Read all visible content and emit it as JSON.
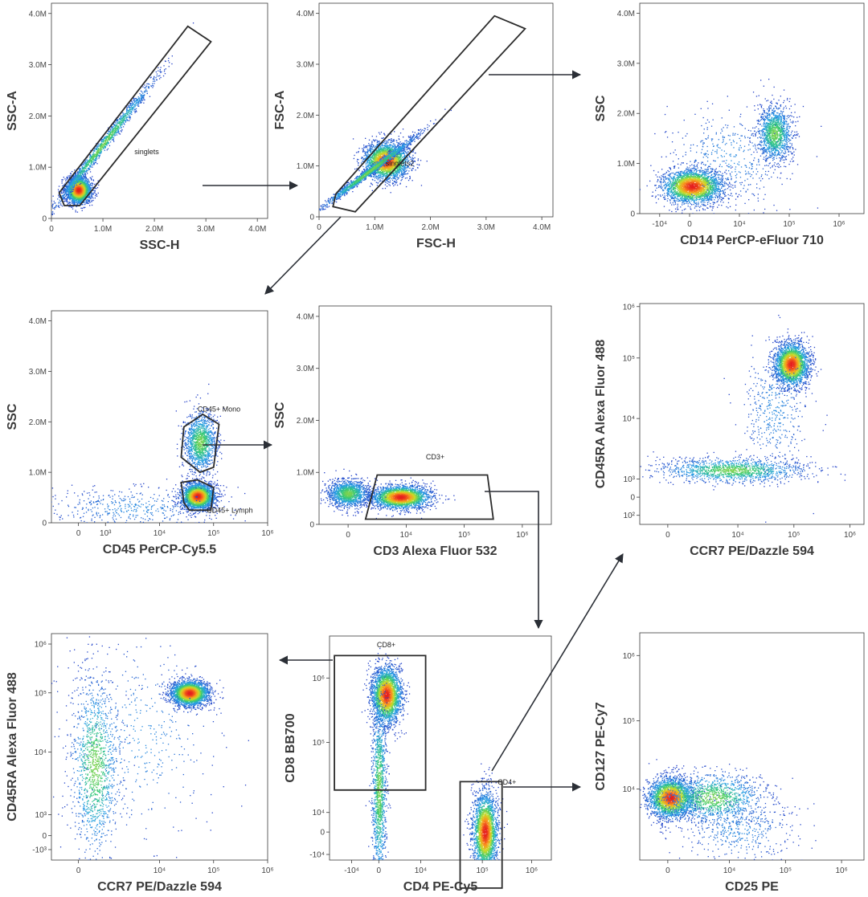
{
  "chart_data": [
    {
      "type": "scatter",
      "id": "p1",
      "xlabel": "SSC-H",
      "ylabel": "SSC-A",
      "xscale": "linear",
      "yscale": "linear",
      "xlim": [
        0,
        4200000
      ],
      "ylim": [
        0,
        4200000
      ],
      "xticks": [
        {
          "v": 0,
          "t": "0"
        },
        {
          "v": 1000000,
          "t": "1.0M"
        },
        {
          "v": 2000000,
          "t": "2.0M"
        },
        {
          "v": 3000000,
          "t": "3.0M"
        },
        {
          "v": 4000000,
          "t": "4.0M"
        }
      ],
      "yticks": [
        {
          "v": 0,
          "t": "0"
        },
        {
          "v": 1000000,
          "t": "1.0M"
        },
        {
          "v": 2000000,
          "t": "2.0M"
        },
        {
          "v": 3000000,
          "t": "3.0M"
        },
        {
          "v": 4000000,
          "t": "4.0M"
        }
      ],
      "gates": [
        {
          "name": "singlets",
          "label_at": [
            1850000,
            1250000
          ],
          "vertices": [
            [
              250000,
              250000
            ],
            [
              150000,
              500000
            ],
            [
              2650000,
              3750000
            ],
            [
              3100000,
              3450000
            ],
            [
              550000,
              250000
            ]
          ]
        }
      ],
      "populations": [
        {
          "center": [
            520000,
            560000
          ],
          "spread": [
            120000,
            130000
          ],
          "weight": "high"
        },
        {
          "center": [
            1000000,
            1450000
          ],
          "spread": [
            500000,
            650000
          ],
          "weight": "medium",
          "diagonal": true
        }
      ]
    },
    {
      "type": "scatter",
      "id": "p2",
      "xlabel": "FSC-H",
      "ylabel": "FSC-A",
      "xscale": "linear",
      "yscale": "linear",
      "xlim": [
        0,
        4200000
      ],
      "ylim": [
        0,
        4200000
      ],
      "xticks": [
        {
          "v": 0,
          "t": "0"
        },
        {
          "v": 1000000,
          "t": "1.0M"
        },
        {
          "v": 2000000,
          "t": "2.0M"
        },
        {
          "v": 3000000,
          "t": "3.0M"
        },
        {
          "v": 4000000,
          "t": "4.0M"
        }
      ],
      "yticks": [
        {
          "v": 0,
          "t": "0"
        },
        {
          "v": 1000000,
          "t": "1.0M"
        },
        {
          "v": 2000000,
          "t": "2.0M"
        },
        {
          "v": 3000000,
          "t": "3.0M"
        },
        {
          "v": 4000000,
          "t": "4.0M"
        }
      ],
      "gates": [
        {
          "name": "singlets2",
          "label_at": [
            1450000,
            1000000
          ],
          "vertices": [
            [
              250000,
              200000
            ],
            [
              300000,
              450000
            ],
            [
              3150000,
              3950000
            ],
            [
              3700000,
              3700000
            ],
            [
              650000,
              100000
            ]
          ]
        }
      ],
      "populations": [
        {
          "center": [
            1200000,
            1100000
          ],
          "spread": [
            200000,
            180000
          ],
          "weight": "high"
        },
        {
          "center": [
            900000,
            900000
          ],
          "spread": [
            450000,
            380000
          ],
          "weight": "medium",
          "diagonal": true
        }
      ]
    },
    {
      "type": "scatter",
      "id": "p3",
      "xlabel": "CD14 PerCP-eFluor 710",
      "ylabel": "SSC",
      "xscale": "biex",
      "yscale": "linear",
      "xlim": [
        -2,
        7
      ],
      "ylim": [
        0,
        4200000
      ],
      "xticks": [
        {
          "v": -1.2,
          "t": "-10⁴"
        },
        {
          "v": 0,
          "t": "0"
        },
        {
          "v": 2,
          "t": "10⁴"
        },
        {
          "v": 4,
          "t": "10⁵"
        },
        {
          "v": 6,
          "t": "10⁶"
        }
      ],
      "yticks": [
        {
          "v": 0,
          "t": "0"
        },
        {
          "v": 1000000,
          "t": "1.0M"
        },
        {
          "v": 2000000,
          "t": "2.0M"
        },
        {
          "v": 3000000,
          "t": "3.0M"
        },
        {
          "v": 4000000,
          "t": "4.0M"
        }
      ],
      "gates": [],
      "populations": [
        {
          "center": [
            0.1,
            550000
          ],
          "spread": [
            0.6,
            170000
          ],
          "weight": "high"
        },
        {
          "center": [
            3.4,
            1600000
          ],
          "spread": [
            0.35,
            280000
          ],
          "weight": "medium"
        },
        {
          "center": [
            1.5,
            1100000
          ],
          "spread": [
            1.2,
            500000
          ],
          "weight": "low"
        }
      ]
    },
    {
      "type": "scatter",
      "id": "p4",
      "xlabel": "CD45 PerCP-Cy5.5",
      "ylabel": "SSC",
      "xscale": "biex",
      "yscale": "linear",
      "xlim": [
        -1,
        7
      ],
      "ylim": [
        0,
        4200000
      ],
      "xticks": [
        {
          "v": 0,
          "t": "0"
        },
        {
          "v": 1,
          "t": "10³"
        },
        {
          "v": 3,
          "t": "10⁴"
        },
        {
          "v": 5,
          "t": "10⁵"
        },
        {
          "v": 7,
          "t": "10⁶"
        }
      ],
      "yticks": [
        {
          "v": 0,
          "t": "0"
        },
        {
          "v": 1000000,
          "t": "1.0M"
        },
        {
          "v": 2000000,
          "t": "2.0M"
        },
        {
          "v": 3000000,
          "t": "3.0M"
        },
        {
          "v": 4000000,
          "t": "4.0M"
        }
      ],
      "gates": [
        {
          "name": "CD45+ Mono",
          "label_at": [
            5.2,
            2200000
          ],
          "vertices": [
            [
              3.8,
              1300000
            ],
            [
              3.9,
              1900000
            ],
            [
              4.6,
              2150000
            ],
            [
              5.2,
              1950000
            ],
            [
              5.0,
              1100000
            ],
            [
              4.5,
              1000000
            ]
          ]
        },
        {
          "name": "CD45+ Lymph",
          "label_at": [
            5.6,
            200000
          ],
          "vertices": [
            [
              3.9,
              400000
            ],
            [
              3.8,
              800000
            ],
            [
              4.4,
              850000
            ],
            [
              5.0,
              700000
            ],
            [
              4.9,
              250000
            ],
            [
              4.1,
              250000
            ]
          ]
        }
      ],
      "populations": [
        {
          "center": [
            4.4,
            530000
          ],
          "spread": [
            0.3,
            130000
          ],
          "weight": "high"
        },
        {
          "center": [
            4.5,
            1600000
          ],
          "spread": [
            0.3,
            300000
          ],
          "weight": "medium"
        },
        {
          "center": [
            2.0,
            300000
          ],
          "spread": [
            1.6,
            200000
          ],
          "weight": "low"
        }
      ]
    },
    {
      "type": "scatter",
      "id": "p5",
      "xlabel": "CD3 Alexa Fluor 532",
      "ylabel": "SSC",
      "xscale": "biex",
      "yscale": "linear",
      "xlim": [
        -1,
        7
      ],
      "ylim": [
        0,
        4200000
      ],
      "xticks": [
        {
          "v": 0,
          "t": "0"
        },
        {
          "v": 2,
          "t": "10⁴"
        },
        {
          "v": 4,
          "t": "10⁵"
        },
        {
          "v": 6,
          "t": "10⁶"
        }
      ],
      "yticks": [
        {
          "v": 0,
          "t": "0"
        },
        {
          "v": 1000000,
          "t": "1.0M"
        },
        {
          "v": 2000000,
          "t": "2.0M"
        },
        {
          "v": 3000000,
          "t": "3.0M"
        },
        {
          "v": 4000000,
          "t": "4.0M"
        }
      ],
      "gates": [
        {
          "name": "CD3+",
          "label_at": [
            3.0,
            1250000
          ],
          "vertices": [
            [
              1.0,
              950000
            ],
            [
              4.8,
              950000
            ],
            [
              5.0,
              100000
            ],
            [
              0.6,
              100000
            ]
          ]
        }
      ],
      "populations": [
        {
          "center": [
            1.8,
            530000
          ],
          "spread": [
            0.5,
            110000
          ],
          "weight": "high"
        },
        {
          "center": [
            0.0,
            600000
          ],
          "spread": [
            0.35,
            130000
          ],
          "weight": "medium"
        }
      ]
    },
    {
      "type": "scatter",
      "id": "p6",
      "xlabel": "CCR7 PE/Dazzle 594",
      "ylabel": "CD45RA Alexa Fluor 488",
      "xscale": "biex",
      "yscale": "biex",
      "xlim": [
        -1,
        7
      ],
      "ylim": [
        -0.3,
        7
      ],
      "xticks": [
        {
          "v": 0,
          "t": "0"
        },
        {
          "v": 2.5,
          "t": "10⁴"
        },
        {
          "v": 4.5,
          "t": "10⁵"
        },
        {
          "v": 6.5,
          "t": "10⁶"
        }
      ],
      "yticks": [
        {
          "v": 0,
          "t": "10²"
        },
        {
          "v": 0.6,
          "t": "0"
        },
        {
          "v": 1.2,
          "t": "10³"
        },
        {
          "v": 3.2,
          "t": "10⁴"
        },
        {
          "v": 5.2,
          "t": "10⁵"
        },
        {
          "v": 6.9,
          "t": "10⁶"
        }
      ],
      "gates": [],
      "populations": [
        {
          "center": [
            4.4,
            5.0
          ],
          "spread": [
            0.3,
            0.35
          ],
          "weight": "high"
        },
        {
          "center": [
            2.3,
            1.5
          ],
          "spread": [
            1.3,
            0.2
          ],
          "weight": "medium"
        },
        {
          "center": [
            3.8,
            3.5
          ],
          "spread": [
            0.6,
            1.1
          ],
          "weight": "low"
        }
      ]
    },
    {
      "type": "scatter",
      "id": "p7",
      "xlabel": "CCR7 PE/Dazzle 594",
      "ylabel": "CD45RA Alexa Fluor 488",
      "xscale": "biex",
      "yscale": "biex",
      "xlim": [
        -1,
        7
      ],
      "ylim": [
        -0.5,
        6
      ],
      "xticks": [
        {
          "v": 0,
          "t": "0"
        },
        {
          "v": 3,
          "t": "10⁴"
        },
        {
          "v": 5,
          "t": "10⁵"
        },
        {
          "v": 7,
          "t": "10⁶"
        }
      ],
      "yticks": [
        {
          "v": -0.2,
          "t": "-10³"
        },
        {
          "v": 0.2,
          "t": "0"
        },
        {
          "v": 0.8,
          "t": "10³"
        },
        {
          "v": 2.6,
          "t": "10⁴"
        },
        {
          "v": 4.3,
          "t": "10⁵"
        },
        {
          "v": 5.7,
          "t": "10⁶"
        }
      ],
      "gates": [],
      "populations": [
        {
          "center": [
            4.1,
            4.3
          ],
          "spread": [
            0.35,
            0.18
          ],
          "weight": "high"
        },
        {
          "center": [
            0.6,
            2.2
          ],
          "spread": [
            0.45,
            1.3
          ],
          "weight": "medium"
        },
        {
          "center": [
            2.2,
            3.0
          ],
          "spread": [
            1.5,
            1.5
          ],
          "weight": "low"
        }
      ]
    },
    {
      "type": "scatter",
      "id": "p8",
      "xlabel": "CD4 PE-Cy5",
      "ylabel": "CD8 BB700",
      "xscale": "biex",
      "yscale": "biex",
      "xlim": [
        -2,
        7
      ],
      "ylim": [
        -1,
        7
      ],
      "xticks": [
        {
          "v": -1.1,
          "t": "-10⁴"
        },
        {
          "v": 0,
          "t": "0"
        },
        {
          "v": 1.7,
          "t": "10⁴"
        },
        {
          "v": 4.2,
          "t": "10⁵"
        },
        {
          "v": 6.2,
          "t": "10⁶"
        }
      ],
      "yticks": [
        {
          "v": -0.8,
          "t": "-10⁴"
        },
        {
          "v": 0,
          "t": "0"
        },
        {
          "v": 0.7,
          "t": "10⁴"
        },
        {
          "v": 3.2,
          "t": "10⁵"
        },
        {
          "v": 5.5,
          "t": "10⁶"
        }
      ],
      "gates": [
        {
          "name": "CD8+",
          "label_at": [
            0.3,
            6.6
          ],
          "vertices": [
            [
              -1.8,
              6.3
            ],
            [
              1.9,
              6.3
            ],
            [
              1.9,
              1.5
            ],
            [
              -1.8,
              1.5
            ]
          ]
        },
        {
          "name": "CD4+",
          "label_at": [
            5.2,
            1.7
          ],
          "vertices": [
            [
              3.3,
              1.8
            ],
            [
              5.0,
              1.8
            ],
            [
              5.0,
              -2.0
            ],
            [
              3.3,
              -2.0
            ]
          ]
        }
      ],
      "populations": [
        {
          "center": [
            4.3,
            0.0
          ],
          "spread": [
            0.25,
            0.7
          ],
          "weight": "high"
        },
        {
          "center": [
            0.3,
            4.9
          ],
          "spread": [
            0.3,
            0.5
          ],
          "weight": "high"
        },
        {
          "center": [
            0.0,
            1.5
          ],
          "spread": [
            0.15,
            1.8
          ],
          "weight": "medium"
        }
      ]
    },
    {
      "type": "scatter",
      "id": "p9",
      "xlabel": "CD25 PE",
      "ylabel": "CD127 PE-Cy7",
      "xscale": "biex",
      "yscale": "biex",
      "xlim": [
        -1,
        7
      ],
      "ylim": [
        -1,
        7
      ],
      "xticks": [
        {
          "v": 0,
          "t": "0"
        },
        {
          "v": 2.2,
          "t": "10⁴"
        },
        {
          "v": 4.2,
          "t": "10⁵"
        },
        {
          "v": 6.2,
          "t": "10⁶"
        }
      ],
      "yticks": [
        {
          "v": 1.5,
          "t": "10⁴"
        },
        {
          "v": 3.9,
          "t": "10⁵"
        },
        {
          "v": 6.2,
          "t": "10⁶"
        }
      ],
      "gates": [],
      "populations": [
        {
          "center": [
            0.1,
            1.2
          ],
          "spread": [
            0.4,
            0.35
          ],
          "weight": "high"
        },
        {
          "center": [
            1.6,
            1.2
          ],
          "spread": [
            0.9,
            0.45
          ],
          "weight": "medium"
        },
        {
          "center": [
            2.5,
            0.1
          ],
          "spread": [
            1.0,
            0.6
          ],
          "weight": "low"
        }
      ]
    }
  ]
}
